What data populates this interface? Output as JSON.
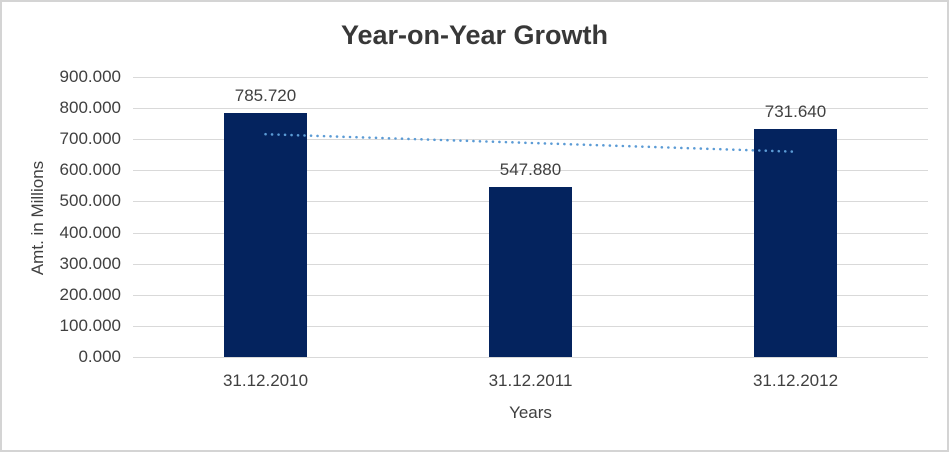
{
  "chart_data": {
    "type": "bar",
    "title": "Year-on-Year Growth",
    "xlabel": "Years",
    "ylabel": "Amt. in Millions",
    "categories": [
      "31.12.2010",
      "31.12.2011",
      "31.12.2012"
    ],
    "values": [
      785.72,
      547.88,
      731.64
    ],
    "data_labels": [
      "785.720",
      "547.880",
      "731.640"
    ],
    "ylim": [
      0,
      900
    ],
    "ytick_step": 100,
    "ytick_labels": [
      "0.000",
      "100.000",
      "200.000",
      "300.000",
      "400.000",
      "500.000",
      "600.000",
      "700.000",
      "800.000",
      "900.000"
    ],
    "grid": true,
    "legend": "none",
    "trendline": {
      "type": "linear",
      "style": "dotted",
      "start_value": 716,
      "end_value": 660
    },
    "colors": {
      "bar": "#04235e",
      "trendline": "#5b9bd5",
      "gridline": "#d9d9d9",
      "label": "#404040",
      "title": "#383838",
      "border": "#d4d4d4"
    }
  }
}
